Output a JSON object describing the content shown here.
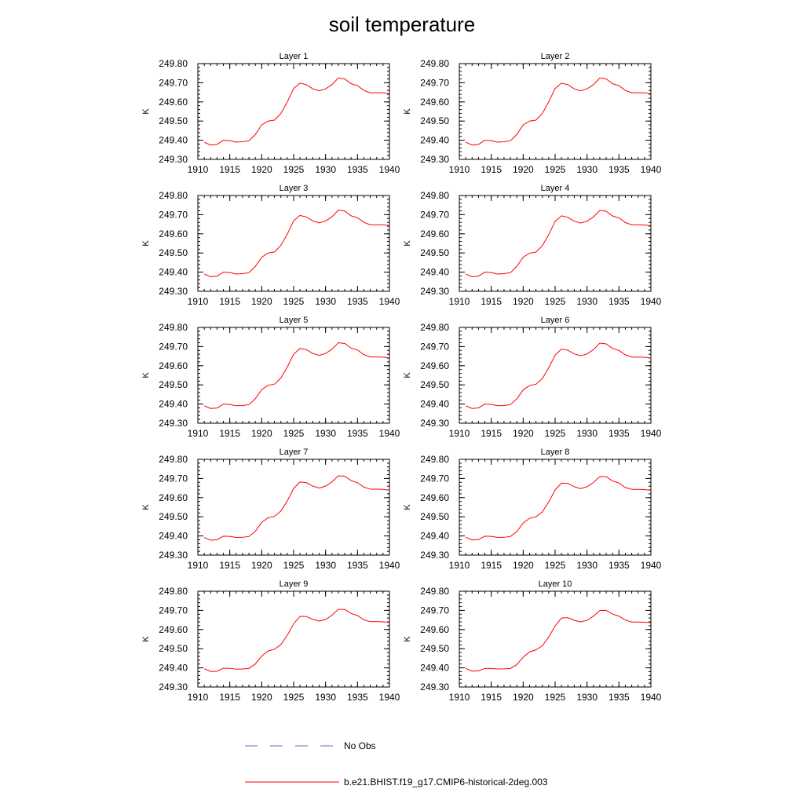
{
  "figure": {
    "title": "soil temperature",
    "colors": {
      "model": "#ff0000",
      "obs": "#6a6ac8",
      "axis": "#000000"
    },
    "legend": {
      "placement": "bottom",
      "entries": [
        {
          "label": "No Obs",
          "style": "dashed"
        },
        {
          "label": "b.e21.BHIST.f19_g17.CMIP6-historical-2deg.003",
          "style": "solid"
        }
      ]
    }
  },
  "chart_data": [
    {
      "type": "line",
      "title": "Layer 1",
      "ylabel": "K",
      "xlim": [
        1910,
        1940
      ],
      "ylim": [
        249.3,
        249.8
      ],
      "xticks": [
        "1910",
        "1915",
        "1920",
        "1925",
        "1930",
        "1935",
        "1940"
      ],
      "yticks": [
        "249.30",
        "249.40",
        "249.50",
        "249.60",
        "249.70",
        "249.80"
      ],
      "series": [
        {
          "name": "b.e21.BHIST.f19_g17.CMIP6-historical-2deg.003",
          "x": [
            1911,
            1912,
            1913,
            1914,
            1915,
            1916,
            1917,
            1918,
            1919,
            1920,
            1921,
            1922,
            1923,
            1924,
            1925,
            1926,
            1927,
            1928,
            1929,
            1930,
            1931,
            1932,
            1933,
            1934,
            1935,
            1936,
            1937,
            1938,
            1939,
            1940
          ],
          "y": [
            249.39,
            249.375,
            249.378,
            249.4,
            249.398,
            249.39,
            249.392,
            249.397,
            249.43,
            249.48,
            249.5,
            249.505,
            249.54,
            249.6,
            249.67,
            249.698,
            249.69,
            249.668,
            249.658,
            249.668,
            249.69,
            249.725,
            249.72,
            249.695,
            249.685,
            249.66,
            249.648,
            249.648,
            249.648,
            249.643
          ]
        }
      ]
    },
    {
      "type": "line",
      "title": "Layer 2",
      "ylabel": "K",
      "xlim": [
        1910,
        1940
      ],
      "ylim": [
        249.3,
        249.8
      ],
      "xticks": [
        "1910",
        "1915",
        "1920",
        "1925",
        "1930",
        "1935",
        "1940"
      ],
      "yticks": [
        "249.30",
        "249.40",
        "249.50",
        "249.60",
        "249.70",
        "249.80"
      ],
      "series": [
        {
          "name": "b.e21.BHIST.f19_g17.CMIP6-historical-2deg.003",
          "x": [
            1911,
            1912,
            1913,
            1914,
            1915,
            1916,
            1917,
            1918,
            1919,
            1920,
            1921,
            1922,
            1923,
            1924,
            1925,
            1926,
            1927,
            1928,
            1929,
            1930,
            1931,
            1932,
            1933,
            1934,
            1935,
            1936,
            1937,
            1938,
            1939,
            1940
          ],
          "y": [
            249.39,
            249.375,
            249.378,
            249.4,
            249.398,
            249.39,
            249.392,
            249.397,
            249.43,
            249.48,
            249.5,
            249.505,
            249.54,
            249.6,
            249.67,
            249.698,
            249.69,
            249.668,
            249.658,
            249.668,
            249.69,
            249.725,
            249.72,
            249.695,
            249.685,
            249.66,
            249.648,
            249.648,
            249.648,
            249.643
          ]
        }
      ]
    },
    {
      "type": "line",
      "title": "Layer 3",
      "ylabel": "K",
      "xlim": [
        1910,
        1940
      ],
      "ylim": [
        249.3,
        249.8
      ],
      "xticks": [
        "1910",
        "1915",
        "1920",
        "1925",
        "1930",
        "1935",
        "1940"
      ],
      "yticks": [
        "249.30",
        "249.40",
        "249.50",
        "249.60",
        "249.70",
        "249.80"
      ],
      "series": [
        {
          "name": "b.e21.BHIST.f19_g17.CMIP6-historical-2deg.003",
          "x": [
            1911,
            1912,
            1913,
            1914,
            1915,
            1916,
            1917,
            1918,
            1919,
            1920,
            1921,
            1922,
            1923,
            1924,
            1925,
            1926,
            1927,
            1928,
            1929,
            1930,
            1931,
            1932,
            1933,
            1934,
            1935,
            1936,
            1937,
            1938,
            1939,
            1940
          ],
          "y": [
            249.39,
            249.376,
            249.379,
            249.4,
            249.398,
            249.39,
            249.392,
            249.397,
            249.43,
            249.478,
            249.5,
            249.505,
            249.54,
            249.598,
            249.668,
            249.696,
            249.688,
            249.667,
            249.657,
            249.667,
            249.689,
            249.724,
            249.719,
            249.694,
            249.684,
            249.66,
            249.647,
            249.647,
            249.647,
            249.643
          ]
        }
      ]
    },
    {
      "type": "line",
      "title": "Layer 4",
      "ylabel": "K",
      "xlim": [
        1910,
        1940
      ],
      "ylim": [
        249.3,
        249.8
      ],
      "xticks": [
        "1910",
        "1915",
        "1920",
        "1925",
        "1930",
        "1935",
        "1940"
      ],
      "yticks": [
        "249.30",
        "249.40",
        "249.50",
        "249.60",
        "249.70",
        "249.80"
      ],
      "series": [
        {
          "name": "b.e21.BHIST.f19_g17.CMIP6-historical-2deg.003",
          "x": [
            1911,
            1912,
            1913,
            1914,
            1915,
            1916,
            1917,
            1918,
            1919,
            1920,
            1921,
            1922,
            1923,
            1924,
            1925,
            1926,
            1927,
            1928,
            1929,
            1930,
            1931,
            1932,
            1933,
            1934,
            1935,
            1936,
            1937,
            1938,
            1939,
            1940
          ],
          "y": [
            249.39,
            249.376,
            249.379,
            249.4,
            249.398,
            249.39,
            249.392,
            249.397,
            249.43,
            249.478,
            249.499,
            249.505,
            249.538,
            249.596,
            249.665,
            249.694,
            249.686,
            249.666,
            249.656,
            249.666,
            249.688,
            249.722,
            249.718,
            249.693,
            249.683,
            249.659,
            249.647,
            249.647,
            249.646,
            249.642
          ]
        }
      ]
    },
    {
      "type": "line",
      "title": "Layer 5",
      "ylabel": "K",
      "xlim": [
        1910,
        1940
      ],
      "ylim": [
        249.3,
        249.8
      ],
      "xticks": [
        "1910",
        "1915",
        "1920",
        "1925",
        "1930",
        "1935",
        "1940"
      ],
      "yticks": [
        "249.30",
        "249.40",
        "249.50",
        "249.60",
        "249.70",
        "249.80"
      ],
      "series": [
        {
          "name": "b.e21.BHIST.f19_g17.CMIP6-historical-2deg.003",
          "x": [
            1911,
            1912,
            1913,
            1914,
            1915,
            1916,
            1917,
            1918,
            1919,
            1920,
            1921,
            1922,
            1923,
            1924,
            1925,
            1926,
            1927,
            1928,
            1929,
            1930,
            1931,
            1932,
            1933,
            1934,
            1935,
            1936,
            1937,
            1938,
            1939,
            1940
          ],
          "y": [
            249.391,
            249.377,
            249.379,
            249.4,
            249.398,
            249.391,
            249.392,
            249.397,
            249.428,
            249.476,
            249.498,
            249.504,
            249.536,
            249.593,
            249.66,
            249.69,
            249.684,
            249.664,
            249.654,
            249.664,
            249.686,
            249.72,
            249.716,
            249.692,
            249.682,
            249.658,
            249.646,
            249.646,
            249.645,
            249.641
          ]
        }
      ]
    },
    {
      "type": "line",
      "title": "Layer 6",
      "ylabel": "K",
      "xlim": [
        1910,
        1940
      ],
      "ylim": [
        249.3,
        249.8
      ],
      "xticks": [
        "1910",
        "1915",
        "1920",
        "1925",
        "1930",
        "1935",
        "1940"
      ],
      "yticks": [
        "249.30",
        "249.40",
        "249.50",
        "249.60",
        "249.70",
        "249.80"
      ],
      "series": [
        {
          "name": "b.e21.BHIST.f19_g17.CMIP6-historical-2deg.003",
          "x": [
            1911,
            1912,
            1913,
            1914,
            1915,
            1916,
            1917,
            1918,
            1919,
            1920,
            1921,
            1922,
            1923,
            1924,
            1925,
            1926,
            1927,
            1928,
            1929,
            1930,
            1931,
            1932,
            1933,
            1934,
            1935,
            1936,
            1937,
            1938,
            1939,
            1940
          ],
          "y": [
            249.391,
            249.377,
            249.38,
            249.4,
            249.398,
            249.391,
            249.392,
            249.397,
            249.427,
            249.474,
            249.497,
            249.503,
            249.533,
            249.589,
            249.655,
            249.687,
            249.681,
            249.662,
            249.652,
            249.662,
            249.684,
            249.718,
            249.714,
            249.69,
            249.68,
            249.657,
            249.645,
            249.645,
            249.644,
            249.64
          ]
        }
      ]
    },
    {
      "type": "line",
      "title": "Layer 7",
      "ylabel": "K",
      "xlim": [
        1910,
        1940
      ],
      "ylim": [
        249.3,
        249.8
      ],
      "xticks": [
        "1910",
        "1915",
        "1920",
        "1925",
        "1930",
        "1935",
        "1940"
      ],
      "yticks": [
        "249.30",
        "249.40",
        "249.50",
        "249.60",
        "249.70",
        "249.80"
      ],
      "series": [
        {
          "name": "b.e21.BHIST.f19_g17.CMIP6-historical-2deg.003",
          "x": [
            1911,
            1912,
            1913,
            1914,
            1915,
            1916,
            1917,
            1918,
            1919,
            1920,
            1921,
            1922,
            1923,
            1924,
            1925,
            1926,
            1927,
            1928,
            1929,
            1930,
            1931,
            1932,
            1933,
            1934,
            1935,
            1936,
            1937,
            1938,
            1939,
            1940
          ],
          "y": [
            249.392,
            249.378,
            249.38,
            249.399,
            249.398,
            249.392,
            249.393,
            249.397,
            249.425,
            249.471,
            249.495,
            249.502,
            249.53,
            249.583,
            249.648,
            249.682,
            249.678,
            249.66,
            249.65,
            249.66,
            249.682,
            249.714,
            249.712,
            249.689,
            249.678,
            249.655,
            249.644,
            249.644,
            249.643,
            249.639
          ]
        }
      ]
    },
    {
      "type": "line",
      "title": "Layer 8",
      "ylabel": "K",
      "xlim": [
        1910,
        1940
      ],
      "ylim": [
        249.3,
        249.8
      ],
      "xticks": [
        "1910",
        "1915",
        "1920",
        "1925",
        "1930",
        "1935",
        "1940"
      ],
      "yticks": [
        "249.30",
        "249.40",
        "249.50",
        "249.60",
        "249.70",
        "249.80"
      ],
      "series": [
        {
          "name": "b.e21.BHIST.f19_g17.CMIP6-historical-2deg.003",
          "x": [
            1911,
            1912,
            1913,
            1914,
            1915,
            1916,
            1917,
            1918,
            1919,
            1920,
            1921,
            1922,
            1923,
            1924,
            1925,
            1926,
            1927,
            1928,
            1929,
            1930,
            1931,
            1932,
            1933,
            1934,
            1935,
            1936,
            1937,
            1938,
            1939,
            1940
          ],
          "y": [
            249.393,
            249.379,
            249.381,
            249.399,
            249.398,
            249.392,
            249.393,
            249.397,
            249.423,
            249.467,
            249.492,
            249.5,
            249.526,
            249.577,
            249.64,
            249.676,
            249.674,
            249.657,
            249.647,
            249.657,
            249.679,
            249.71,
            249.709,
            249.687,
            249.676,
            249.653,
            249.643,
            249.643,
            249.642,
            249.638
          ]
        }
      ]
    },
    {
      "type": "line",
      "title": "Layer 9",
      "ylabel": "K",
      "xlim": [
        1910,
        1940
      ],
      "ylim": [
        249.3,
        249.8
      ],
      "xticks": [
        "1910",
        "1915",
        "1920",
        "1925",
        "1930",
        "1935",
        "1940"
      ],
      "yticks": [
        "249.30",
        "249.40",
        "249.50",
        "249.60",
        "249.70",
        "249.80"
      ],
      "series": [
        {
          "name": "b.e21.BHIST.f19_g17.CMIP6-historical-2deg.003",
          "x": [
            1911,
            1912,
            1913,
            1914,
            1915,
            1916,
            1917,
            1918,
            1919,
            1920,
            1921,
            1922,
            1923,
            1924,
            1925,
            1926,
            1927,
            1928,
            1929,
            1930,
            1931,
            1932,
            1933,
            1934,
            1935,
            1936,
            1937,
            1938,
            1939,
            1940
          ],
          "y": [
            249.395,
            249.381,
            249.382,
            249.398,
            249.398,
            249.393,
            249.394,
            249.397,
            249.42,
            249.462,
            249.488,
            249.497,
            249.521,
            249.57,
            249.63,
            249.669,
            249.668,
            249.653,
            249.644,
            249.652,
            249.675,
            249.705,
            249.705,
            249.684,
            249.673,
            249.651,
            249.641,
            249.641,
            249.64,
            249.637
          ]
        }
      ]
    },
    {
      "type": "line",
      "title": "Layer 10",
      "ylabel": "K",
      "xlim": [
        1910,
        1940
      ],
      "ylim": [
        249.3,
        249.8
      ],
      "xticks": [
        "1910",
        "1915",
        "1920",
        "1925",
        "1930",
        "1935",
        "1940"
      ],
      "yticks": [
        "249.30",
        "249.40",
        "249.50",
        "249.60",
        "249.70",
        "249.80"
      ],
      "series": [
        {
          "name": "b.e21.BHIST.f19_g17.CMIP6-historical-2deg.003",
          "x": [
            1911,
            1912,
            1913,
            1914,
            1915,
            1916,
            1917,
            1918,
            1919,
            1920,
            1921,
            1922,
            1923,
            1924,
            1925,
            1926,
            1927,
            1928,
            1929,
            1930,
            1931,
            1932,
            1933,
            1934,
            1935,
            1936,
            1937,
            1938,
            1939,
            1940
          ],
          "y": [
            249.397,
            249.383,
            249.384,
            249.397,
            249.397,
            249.394,
            249.395,
            249.397,
            249.417,
            249.456,
            249.483,
            249.494,
            249.515,
            249.561,
            249.619,
            249.66,
            249.662,
            249.648,
            249.64,
            249.648,
            249.67,
            249.699,
            249.7,
            249.681,
            249.67,
            249.649,
            249.639,
            249.639,
            249.638,
            249.636
          ]
        }
      ]
    }
  ]
}
